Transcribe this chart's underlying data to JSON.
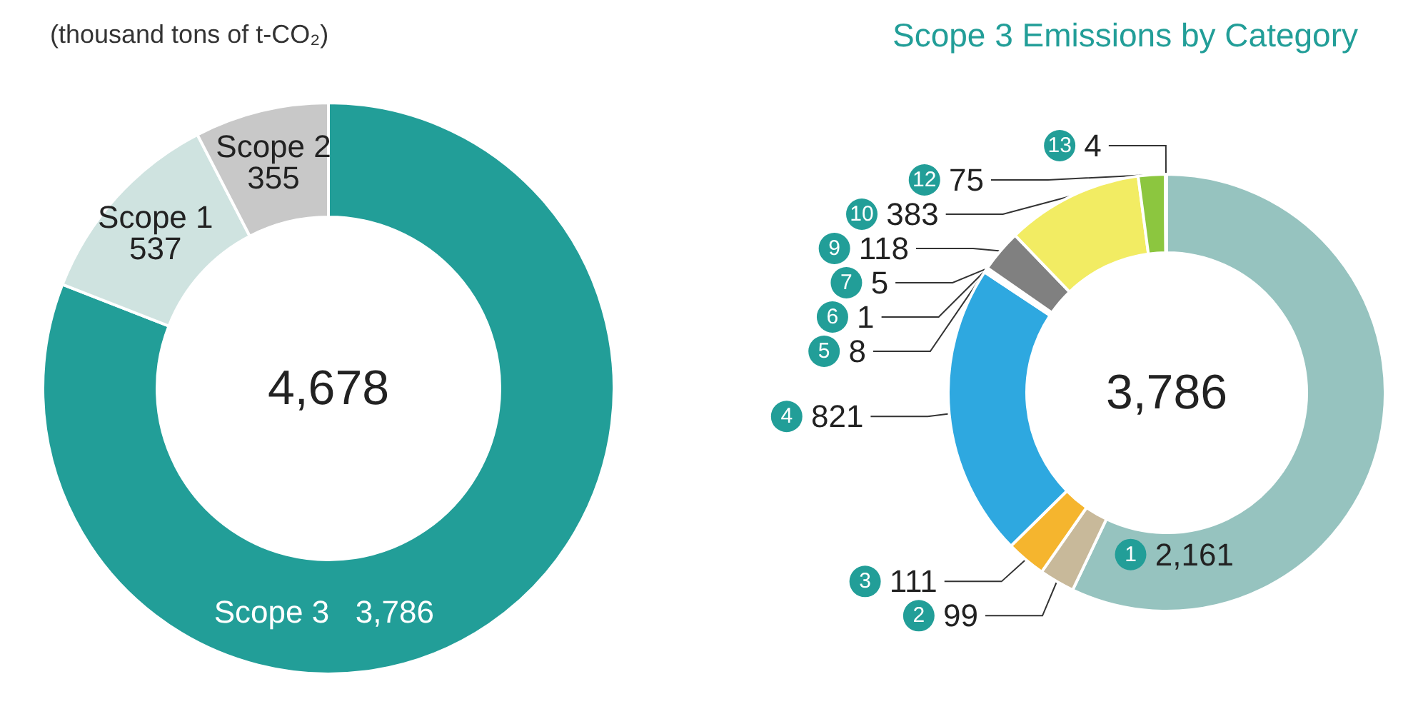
{
  "chart_data": [
    {
      "type": "donut",
      "subtitle": "(thousand tons of t-CO₂)",
      "categories": [
        "Scope 3",
        "Scope 1",
        "Scope 2"
      ],
      "values": [
        3786,
        537,
        355
      ],
      "colors": [
        "#229e98",
        "#cfe3e0",
        "#c8c8c8"
      ],
      "value_labels": [
        "3,786",
        "537",
        "355"
      ],
      "annotations": [
        "4,678"
      ],
      "legend": false
    },
    {
      "type": "donut",
      "title": "Scope 3 Emissions by Category",
      "categories": [
        "1",
        "2",
        "3",
        "4",
        "5",
        "6",
        "7",
        "9",
        "10",
        "12",
        "13"
      ],
      "values": [
        2161,
        99,
        111,
        821,
        8,
        1,
        5,
        118,
        383,
        75,
        4
      ],
      "colors": [
        "#96c3bf",
        "#c8b99a",
        "#f5b52e",
        "#2ea8e0",
        "#2ea8e0",
        "#9a9a9a",
        "#808080",
        "#808080",
        "#f2ec63",
        "#8cc63f",
        "#c8c8c8"
      ],
      "value_labels": [
        "2,161",
        "99",
        "111",
        "821",
        "8",
        "1",
        "5",
        "118",
        "383",
        "75",
        "4"
      ],
      "annotations": [
        "3,786"
      ],
      "legend": false
    }
  ]
}
